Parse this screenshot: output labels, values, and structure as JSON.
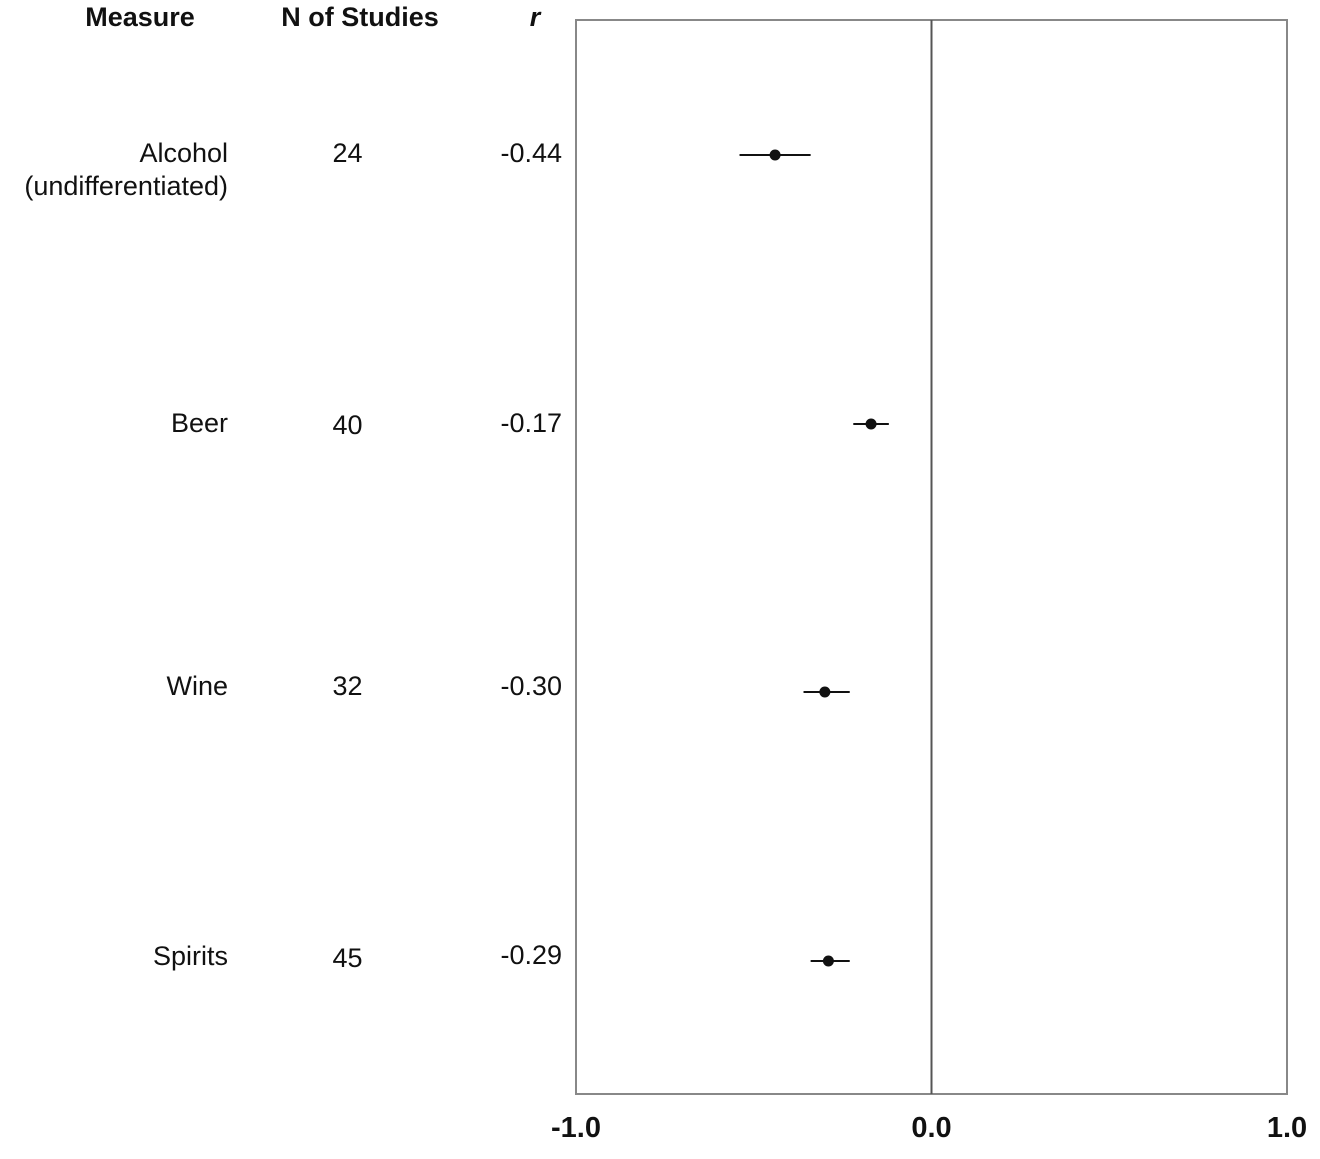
{
  "headers": {
    "measure": "Measure",
    "n_studies": "N of Studies",
    "r": "r"
  },
  "chart_data": {
    "type": "scatter",
    "subtype": "forest-plot",
    "title": "",
    "xlabel": "",
    "ylabel": "",
    "xlim": [
      -1.0,
      1.0
    ],
    "x_ticks": [
      "-1.0",
      "0.0",
      "1.0"
    ],
    "reference_line": 0.0,
    "grid": false,
    "colors": {
      "marker": "#111111",
      "frame": "#888888",
      "reference": "#555555"
    },
    "rows": [
      {
        "measure_lines": [
          "Alcohol",
          "(undifferentiated)"
        ],
        "n": "24",
        "r_label": "-0.44",
        "r": -0.44,
        "ci": [
          -0.54,
          -0.34
        ]
      },
      {
        "measure_lines": [
          "Beer"
        ],
        "n": "40",
        "r_label": "-0.17",
        "r": -0.17,
        "ci": [
          -0.22,
          -0.12
        ]
      },
      {
        "measure_lines": [
          "Wine"
        ],
        "n": "32",
        "r_label": "-0.30",
        "r": -0.3,
        "ci": [
          -0.36,
          -0.23
        ]
      },
      {
        "measure_lines": [
          "Spirits"
        ],
        "n": "45",
        "r_label": "-0.29",
        "r": -0.29,
        "ci": [
          -0.34,
          -0.23
        ]
      }
    ]
  }
}
